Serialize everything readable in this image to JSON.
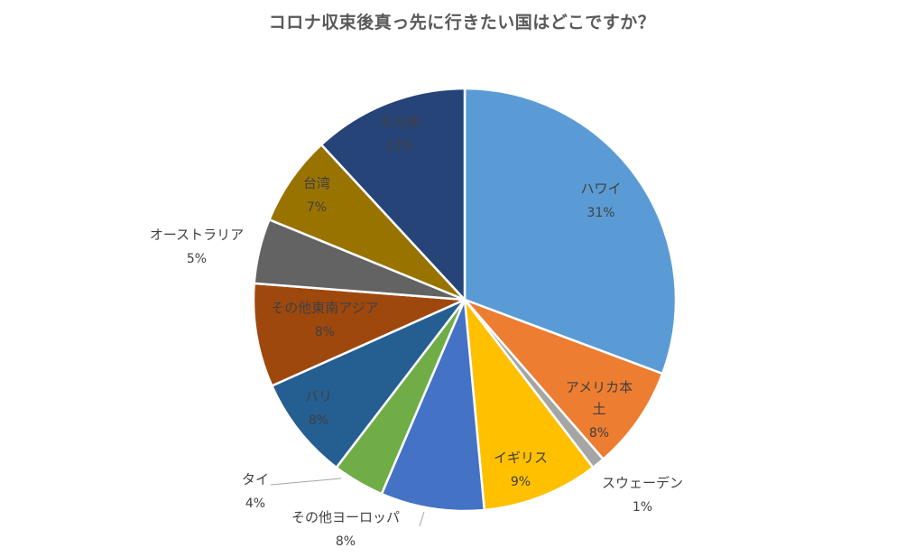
{
  "chart_data": {
    "type": "pie",
    "title": "コロナ収束後真っ先に行きたい国はどこですか？",
    "slices": [
      {
        "label": "ハワイ",
        "value": 31,
        "display": "31%",
        "color": "#5B9BD5"
      },
      {
        "label": "アメリカ本土",
        "value": 8,
        "display": "8%",
        "color": "#ED7D31"
      },
      {
        "label": "スウェーデン",
        "value": 1,
        "display": "1%",
        "color": "#A5A5A5"
      },
      {
        "label": "イギリス",
        "value": 9,
        "display": "9%",
        "color": "#FFC000"
      },
      {
        "label": "その他ヨーロッパ",
        "value": 8,
        "display": "8%",
        "color": "#4472C4"
      },
      {
        "label": "タイ",
        "value": 4,
        "display": "4%",
        "color": "#70AD47"
      },
      {
        "label": "バリ",
        "value": 8,
        "display": "8%",
        "color": "#255E91"
      },
      {
        "label": "その他東南アジア",
        "value": 8,
        "display": "8%",
        "color": "#9E480E"
      },
      {
        "label": "オーストラリア",
        "value": 5,
        "display": "5%",
        "color": "#636363"
      },
      {
        "label": "台湾",
        "value": 7,
        "display": "7%",
        "color": "#997300"
      },
      {
        "label": "その他",
        "value": 12,
        "display": "12%",
        "color": "#264478"
      }
    ]
  }
}
